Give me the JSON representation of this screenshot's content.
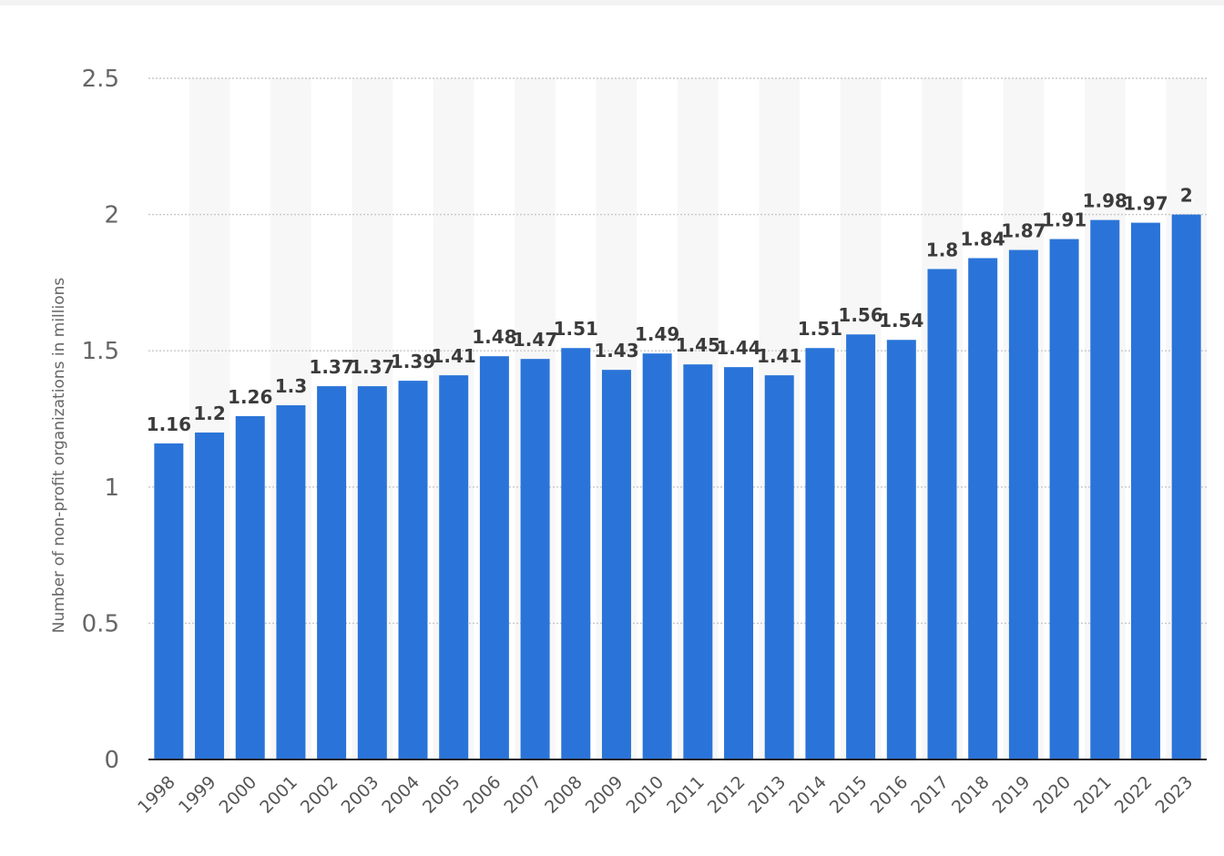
{
  "chart_data": {
    "type": "bar",
    "title": "",
    "xlabel": "",
    "ylabel": "Number of non-profit organizations in millions",
    "ylim": [
      0,
      2.5
    ],
    "yticks": [
      0,
      0.5,
      1,
      1.5,
      2,
      2.5
    ],
    "ytick_labels": [
      "0",
      "0.5",
      "1",
      "1.5",
      "2",
      "2.5"
    ],
    "grid": true,
    "categories": [
      "1998",
      "1999",
      "2000",
      "2001",
      "2002",
      "2003",
      "2004",
      "2005",
      "2006",
      "2007",
      "2008",
      "2009",
      "2010",
      "2011",
      "2012",
      "2013",
      "2014",
      "2015",
      "2016",
      "2017",
      "2018",
      "2019",
      "2020",
      "2021",
      "2022",
      "2023"
    ],
    "values": [
      1.16,
      1.2,
      1.26,
      1.3,
      1.37,
      1.37,
      1.39,
      1.41,
      1.48,
      1.47,
      1.51,
      1.43,
      1.49,
      1.45,
      1.44,
      1.41,
      1.51,
      1.56,
      1.54,
      1.8,
      1.84,
      1.87,
      1.91,
      1.98,
      1.97,
      2
    ],
    "value_labels": [
      "1.16",
      "1.2",
      "1.26",
      "1.3",
      "1.37",
      "1.37",
      "1.39",
      "1.41",
      "1.48",
      "1.47",
      "1.51",
      "1.43",
      "1.49",
      "1.45",
      "1.44",
      "1.41",
      "1.51",
      "1.56",
      "1.54",
      "1.8",
      "1.84",
      "1.87",
      "1.91",
      "1.98",
      "1.97",
      "2"
    ],
    "colors": {
      "bar": "#2a74d9",
      "grid": "#c8c8c8",
      "band": "#f7f7f7",
      "axis": "#222222"
    }
  }
}
